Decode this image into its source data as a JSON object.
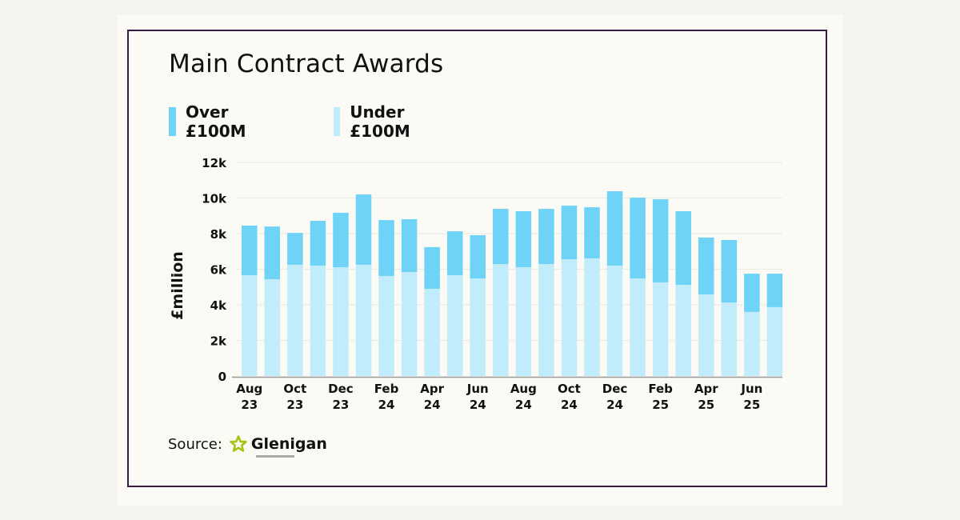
{
  "chart_data": {
    "type": "bar",
    "stacked": true,
    "title": "Main Contract Awards",
    "xlabel": "",
    "ylabel": "£million",
    "ylim": [
      0,
      12000
    ],
    "yticks": [
      0,
      2000,
      4000,
      6000,
      8000,
      10000,
      12000
    ],
    "ytick_labels": [
      "0",
      "2k",
      "4k",
      "6k",
      "8k",
      "10k",
      "12k"
    ],
    "grid": true,
    "legend_position": "top-left",
    "categories": [
      "Aug 23",
      "Sep 23",
      "Oct 23",
      "Nov 23",
      "Dec 23",
      "Jan 24",
      "Feb 24",
      "Mar 24",
      "Apr 24",
      "May 24",
      "Jun 24",
      "Jul 24",
      "Aug 24",
      "Sep 24",
      "Oct 24",
      "Nov 24",
      "Dec 24",
      "Jan 25",
      "Feb 25",
      "Mar 25",
      "Apr 25",
      "May 25",
      "Jun 25",
      "Jul 25"
    ],
    "xtick_labels": [
      {
        "index": 0,
        "line1": "Aug",
        "line2": "23"
      },
      {
        "index": 2,
        "line1": "Oct",
        "line2": "23"
      },
      {
        "index": 4,
        "line1": "Dec",
        "line2": "23"
      },
      {
        "index": 6,
        "line1": "Feb",
        "line2": "24"
      },
      {
        "index": 8,
        "line1": "Apr",
        "line2": "24"
      },
      {
        "index": 10,
        "line1": "Jun",
        "line2": "24"
      },
      {
        "index": 12,
        "line1": "Aug",
        "line2": "24"
      },
      {
        "index": 14,
        "line1": "Oct",
        "line2": "24"
      },
      {
        "index": 16,
        "line1": "Dec",
        "line2": "24"
      },
      {
        "index": 18,
        "line1": "Feb",
        "line2": "25"
      },
      {
        "index": 20,
        "line1": "Apr",
        "line2": "25"
      },
      {
        "index": 22,
        "line1": "Jun",
        "line2": "25"
      }
    ],
    "series": [
      {
        "name": "Under £100M",
        "color": "#c0ecfb",
        "values": [
          5660,
          5440,
          6250,
          6200,
          6110,
          6250,
          5620,
          5840,
          4900,
          5660,
          5480,
          6290,
          6110,
          6290,
          6560,
          6610,
          6200,
          5480,
          5260,
          5120,
          4580,
          4130,
          3600,
          3870
        ]
      },
      {
        "name": "Over £100M",
        "color": "#6fd3f7",
        "values": [
          2790,
          2960,
          1790,
          2520,
          3060,
          3950,
          3140,
          2970,
          2340,
          2470,
          2430,
          3100,
          3150,
          3100,
          3010,
          2870,
          4180,
          4540,
          4670,
          4140,
          3200,
          3510,
          2150,
          1880
        ]
      }
    ]
  },
  "legend": [
    {
      "label": "Over £100M",
      "color": "#6fd3f7"
    },
    {
      "label": "Under £100M",
      "color": "#c0ecfb"
    }
  ],
  "source": {
    "prefix": "Source:",
    "brand": "Glenigan",
    "brand_icon": "star-icon",
    "brand_color": "#a8c21a"
  },
  "colors": {
    "frame": "#3a1b45",
    "gridline": "#ecebe4",
    "axis": "#999999",
    "text": "#111111"
  }
}
